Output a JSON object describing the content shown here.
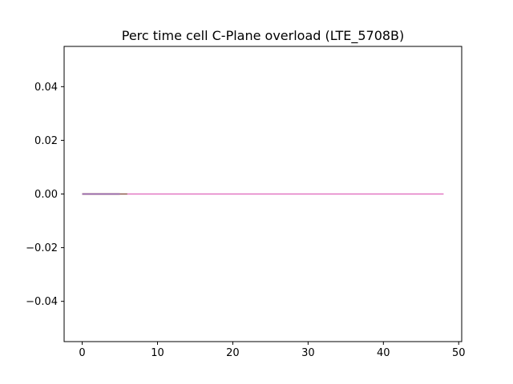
{
  "chart_data": {
    "type": "line",
    "title": "Perc time cell C-Plane overload (LTE_5708B)",
    "xlabel": "",
    "ylabel": "",
    "xlim": [
      -2.4,
      50.4
    ],
    "ylim": [
      -0.055,
      0.055
    ],
    "xticks": [
      0,
      10,
      20,
      30,
      40,
      50
    ],
    "xtick_labels": [
      "0",
      "10",
      "20",
      "30",
      "40",
      "50"
    ],
    "yticks": [
      -0.04,
      -0.02,
      0.0,
      0.02,
      0.04
    ],
    "ytick_labels": [
      "−0.04",
      "−0.02",
      "0.00",
      "0.02",
      "0.04"
    ],
    "grid": false,
    "legend": "none",
    "series": [
      {
        "color": "#1f77b4",
        "x": [
          0,
          5
        ],
        "y": [
          0,
          0
        ]
      },
      {
        "color": "#ff7f0e",
        "x": [
          0,
          5
        ],
        "y": [
          0,
          0
        ]
      },
      {
        "color": "#2ca02c",
        "x": [
          0,
          5
        ],
        "y": [
          0,
          0
        ]
      },
      {
        "color": "#d62728",
        "x": [
          0,
          5
        ],
        "y": [
          0,
          0
        ]
      },
      {
        "color": "#9467bd",
        "x": [
          0,
          5
        ],
        "y": [
          0,
          0
        ]
      },
      {
        "color": "#8c564b",
        "x": [
          5,
          6
        ],
        "y": [
          0,
          0
        ]
      },
      {
        "color": "#e377c2",
        "x": [
          6,
          48
        ],
        "y": [
          0,
          0
        ]
      }
    ]
  }
}
